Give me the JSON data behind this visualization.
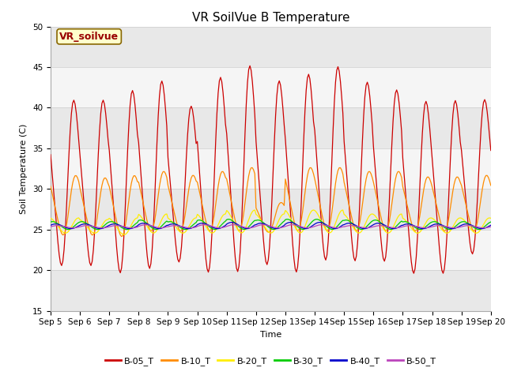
{
  "title": "VR SoilVue B Temperature",
  "xlabel": "Time",
  "ylabel": "Soil Temperature (C)",
  "ylim": [
    15,
    50
  ],
  "total_days": 15,
  "xtick_labels": [
    "Sep 5",
    "Sep 6",
    "Sep 7",
    "Sep 8",
    "Sep 9",
    "Sep 10",
    "Sep 11",
    "Sep 12",
    "Sep 13",
    "Sep 14",
    "Sep 15",
    "Sep 16",
    "Sep 17",
    "Sep 18",
    "Sep 19",
    "Sep 20"
  ],
  "annotation_text": "VR_soilvue",
  "annotation_bg": "#ffffcc",
  "annotation_border": "#886600",
  "series": [
    {
      "name": "B-05_T",
      "color": "#cc0000",
      "peaks": [
        42,
        42,
        43.3,
        44.5,
        41.2,
        45,
        46.5,
        44.5,
        45.4,
        46.3,
        44.3,
        43.3,
        41.9,
        42,
        42
      ],
      "mins": [
        19.5,
        19.5,
        18.5,
        19.0,
        20.0,
        18.5,
        18.5,
        19.5,
        18.5,
        20.0,
        20.0,
        20.0,
        18.5,
        18.5,
        21.0
      ],
      "lag": 0.0,
      "harmonic": 0.15
    },
    {
      "name": "B-10_T",
      "color": "#ff8c00",
      "peaks": [
        32.0,
        31.7,
        32.0,
        32.5,
        32.0,
        32.5,
        33.0,
        28.5,
        33.0,
        33.0,
        32.5,
        32.5,
        31.8,
        31.8,
        32.0
      ],
      "mins": [
        24.0,
        24.0,
        23.8,
        24.5,
        24.5,
        24.5,
        24.5,
        24.5,
        24.5,
        24.5,
        24.5,
        24.5,
        24.5,
        24.5,
        24.5
      ],
      "lag": 0.06,
      "harmonic": 0.12
    },
    {
      "name": "B-20_T",
      "color": "#ffee00",
      "peaks": [
        26.5,
        26.3,
        26.5,
        27.0,
        26.5,
        27.0,
        27.5,
        27.0,
        27.5,
        27.5,
        27.0,
        27.0,
        26.5,
        26.5,
        26.5
      ],
      "mins": [
        24.5,
        24.5,
        24.3,
        24.5,
        24.5,
        24.5,
        24.5,
        24.5,
        24.5,
        24.5,
        24.5,
        24.5,
        24.5,
        24.5,
        24.5
      ],
      "lag": 0.15,
      "harmonic": 0.08
    },
    {
      "name": "B-30_T",
      "color": "#00cc00",
      "peaks": [
        26.0,
        26.0,
        26.0,
        26.2,
        26.0,
        26.2,
        26.3,
        26.2,
        26.3,
        26.3,
        26.2,
        26.2,
        26.0,
        26.0,
        26.0
      ],
      "mins": [
        25.0,
        25.0,
        25.0,
        25.0,
        25.0,
        25.0,
        25.0,
        25.0,
        25.0,
        25.0,
        25.0,
        25.0,
        25.0,
        25.0,
        25.0
      ],
      "lag": 0.25,
      "harmonic": 0.05
    },
    {
      "name": "B-40_T",
      "color": "#0000cc",
      "peaks": [
        25.7,
        25.7,
        25.7,
        25.8,
        25.7,
        25.8,
        25.9,
        25.8,
        25.9,
        25.9,
        25.8,
        25.8,
        25.7,
        25.7,
        25.7
      ],
      "mins": [
        25.1,
        25.1,
        25.1,
        25.1,
        25.1,
        25.1,
        25.1,
        25.1,
        25.1,
        25.1,
        25.1,
        25.1,
        25.1,
        25.1,
        25.1
      ],
      "lag": 0.35,
      "harmonic": 0.03
    },
    {
      "name": "B-50_T",
      "color": "#bb44bb",
      "peaks": [
        25.5,
        25.5,
        25.5,
        25.6,
        25.5,
        25.6,
        25.6,
        25.6,
        25.6,
        25.6,
        25.5,
        25.5,
        25.5,
        25.5,
        25.5
      ],
      "mins": [
        25.2,
        25.2,
        25.2,
        25.2,
        25.2,
        25.2,
        25.2,
        25.2,
        25.2,
        25.2,
        25.2,
        25.2,
        25.2,
        25.2,
        25.2
      ],
      "lag": 0.42,
      "harmonic": 0.02
    }
  ],
  "bg_bands": [
    {
      "ymin": 15,
      "ymax": 20,
      "color": "#e8e8e8"
    },
    {
      "ymin": 20,
      "ymax": 25,
      "color": "#f5f5f5"
    },
    {
      "ymin": 25,
      "ymax": 30,
      "color": "#e8e8e8"
    },
    {
      "ymin": 30,
      "ymax": 35,
      "color": "#f5f5f5"
    },
    {
      "ymin": 35,
      "ymax": 40,
      "color": "#e8e8e8"
    },
    {
      "ymin": 40,
      "ymax": 45,
      "color": "#f5f5f5"
    },
    {
      "ymin": 45,
      "ymax": 50,
      "color": "#e8e8e8"
    }
  ],
  "peak_time": 0.58,
  "title_fontsize": 11,
  "label_fontsize": 8,
  "tick_fontsize": 7.5,
  "legend_fontsize": 8
}
